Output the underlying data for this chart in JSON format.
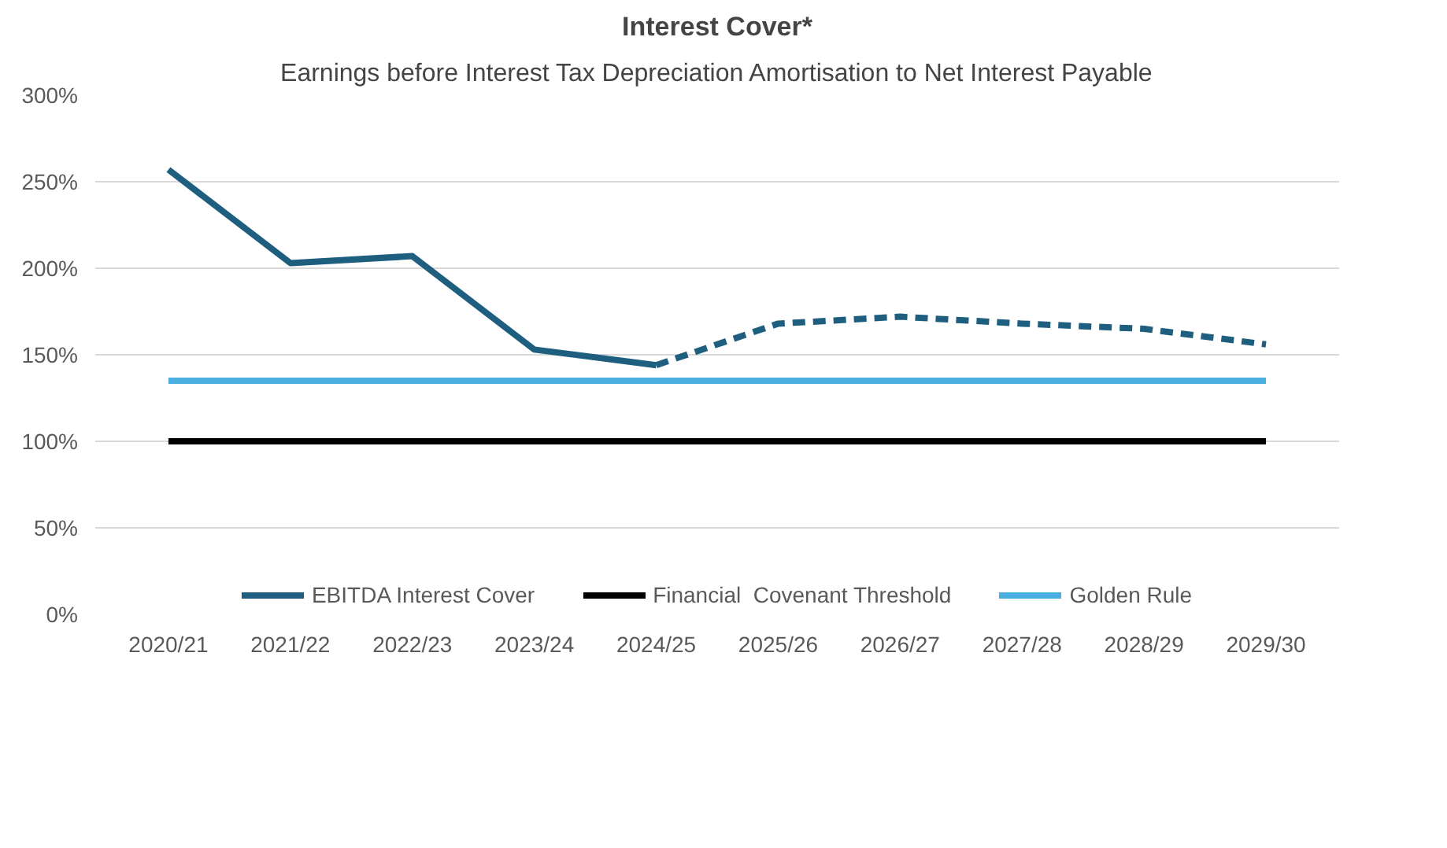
{
  "chart_data": {
    "type": "line",
    "title": "Interest Cover*",
    "subtitle": "Earnings before Interest Tax Depreciation Amortisation to Net Interest Payable",
    "categories": [
      "2020/21",
      "2021/22",
      "2022/23",
      "2023/24",
      "2024/25",
      "2025/26",
      "2026/27",
      "2027/28",
      "2028/29",
      "2029/30"
    ],
    "series": [
      {
        "name": "EBITDA Interest Cover",
        "color": "#1e5f80",
        "values": [
          257,
          203,
          207,
          153,
          144,
          null,
          null,
          null,
          null,
          null
        ]
      },
      {
        "color": "#1e5f80",
        "line_style": "dashed",
        "values": [
          null,
          null,
          null,
          null,
          144,
          168,
          172,
          168,
          165,
          156
        ]
      },
      {
        "name": "Financial  Covenant Threshold",
        "color": "#000000",
        "values": [
          100,
          100,
          100,
          100,
          100,
          100,
          100,
          100,
          100,
          100
        ]
      },
      {
        "name": "Golden Rule",
        "color": "#48afe0",
        "values": [
          135,
          135,
          135,
          135,
          135,
          135,
          135,
          135,
          135,
          135
        ]
      }
    ],
    "ylim": [
      0,
      300
    ],
    "yticks": [
      {
        "value": 0,
        "label": "0%"
      },
      {
        "value": 50,
        "label": "50%"
      },
      {
        "value": 100,
        "label": "100%"
      },
      {
        "value": 150,
        "label": "150%"
      },
      {
        "value": 200,
        "label": "200%"
      },
      {
        "value": 250,
        "label": "250%"
      },
      {
        "value": 300,
        "label": "300%"
      }
    ],
    "grid": "y",
    "legend": "bottom",
    "line_style": "solid",
    "marker": "none"
  }
}
